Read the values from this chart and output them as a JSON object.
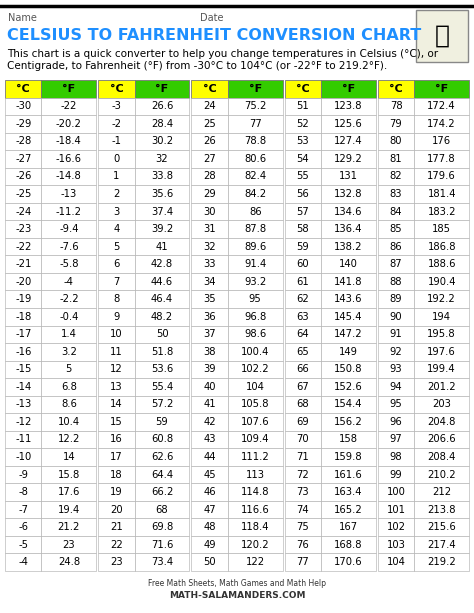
{
  "title": "CELSIUS TO FAHRENHEIT CONVERSION CHART",
  "name_label": "Name",
  "date_label": "Date",
  "subtitle1": "This chart is a quick converter to help you change temperatures in Celsius (°C), or",
  "subtitle2": "Centigrade, to Fahrenheit (°F) from -30°C to 104°C (or -22°F to 219.2°F).",
  "col_headers": [
    "°C",
    "°F"
  ],
  "header_color_c": "#ffff00",
  "header_color_f": "#33cc00",
  "bg_color": "#ffffff",
  "cell_border": "#aaaaaa",
  "title_color": "#1e8fff",
  "text_color": "#000000",
  "footer_line1": "Free Math Sheets, Math Games and Math Help",
  "footer_line2": "MATH-SALAMANDERS.COM",
  "columns": [
    [
      -30,
      -29,
      -28,
      -27,
      -26,
      -25,
      -24,
      -23,
      -22,
      -21,
      -20,
      -19,
      -18,
      -17,
      -16,
      -15,
      -14,
      -13,
      -12,
      -11,
      -10,
      -9,
      -8,
      -7,
      -6,
      -5,
      -4
    ],
    [
      -22,
      -20.2,
      -18.4,
      -16.6,
      -14.8,
      -13,
      -11.2,
      -9.4,
      -7.6,
      -5.8,
      -4,
      -2.2,
      -0.4,
      1.4,
      3.2,
      5,
      6.8,
      8.6,
      10.4,
      12.2,
      14,
      15.8,
      17.6,
      19.4,
      21.2,
      23,
      24.8
    ],
    [
      -3,
      -2,
      -1,
      0,
      1,
      2,
      3,
      4,
      5,
      6,
      7,
      8,
      9,
      10,
      11,
      12,
      13,
      14,
      15,
      16,
      17,
      18,
      19,
      20,
      21,
      22,
      23
    ],
    [
      26.6,
      28.4,
      30.2,
      32,
      33.8,
      35.6,
      37.4,
      39.2,
      41,
      42.8,
      44.6,
      46.4,
      48.2,
      50,
      51.8,
      53.6,
      55.4,
      57.2,
      59,
      60.8,
      62.6,
      64.4,
      66.2,
      68,
      69.8,
      71.6,
      73.4
    ],
    [
      24,
      25,
      26,
      27,
      28,
      29,
      30,
      31,
      32,
      33,
      34,
      35,
      36,
      37,
      38,
      39,
      40,
      41,
      42,
      43,
      44,
      45,
      46,
      47,
      48,
      49,
      50
    ],
    [
      75.2,
      77,
      78.8,
      80.6,
      82.4,
      84.2,
      86,
      87.8,
      89.6,
      91.4,
      93.2,
      95,
      96.8,
      98.6,
      100.4,
      102.2,
      104,
      105.8,
      107.6,
      109.4,
      111.2,
      113,
      114.8,
      116.6,
      118.4,
      120.2,
      122
    ],
    [
      51,
      52,
      53,
      54,
      55,
      56,
      57,
      58,
      59,
      60,
      61,
      62,
      63,
      64,
      65,
      66,
      67,
      68,
      69,
      70,
      71,
      72,
      73,
      74,
      75,
      76,
      77
    ],
    [
      123.8,
      125.6,
      127.4,
      129.2,
      131,
      132.8,
      134.6,
      136.4,
      138.2,
      140,
      141.8,
      143.6,
      145.4,
      147.2,
      149,
      150.8,
      152.6,
      154.4,
      156.2,
      158,
      159.8,
      161.6,
      163.4,
      165.2,
      167,
      168.8,
      170.6
    ],
    [
      78,
      79,
      80,
      81,
      82,
      83,
      84,
      85,
      86,
      87,
      88,
      89,
      90,
      91,
      92,
      93,
      94,
      95,
      96,
      97,
      98,
      99,
      100,
      101,
      102,
      103,
      104
    ],
    [
      172.4,
      174.2,
      176,
      177.8,
      179.6,
      181.4,
      183.2,
      185,
      186.8,
      188.6,
      190.4,
      192.2,
      194,
      195.8,
      197.6,
      199.4,
      201.2,
      203,
      204.8,
      206.6,
      208.4,
      210.2,
      212,
      213.8,
      215.6,
      217.4,
      219.2
    ]
  ]
}
